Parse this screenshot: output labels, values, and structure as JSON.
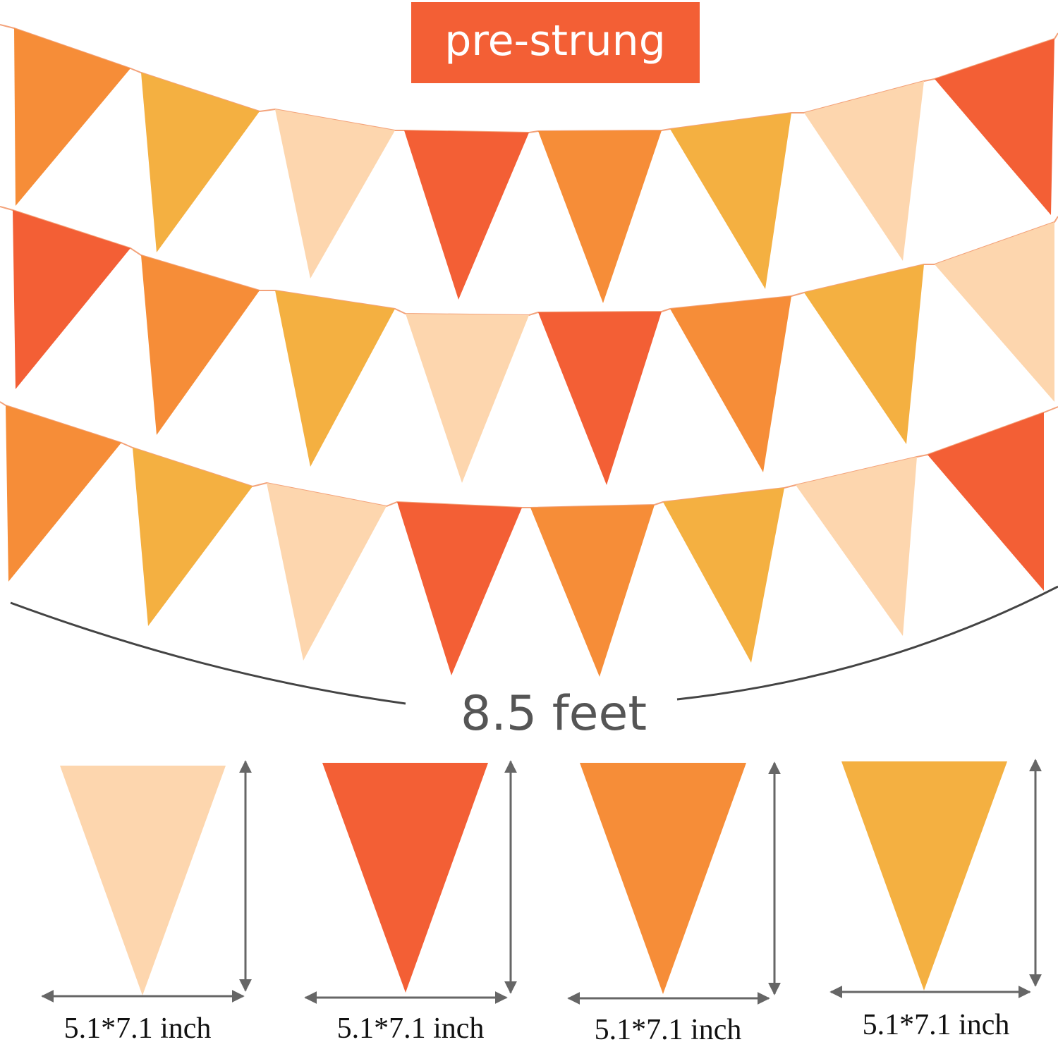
{
  "badge": {
    "text": "pre-strung"
  },
  "length_label": "8.5 feet",
  "sizes": [
    "5.1*7.1 inch",
    "5.1*7.1 inch",
    "5.1*7.1 inch",
    "5.1*7.1 inch"
  ]
}
